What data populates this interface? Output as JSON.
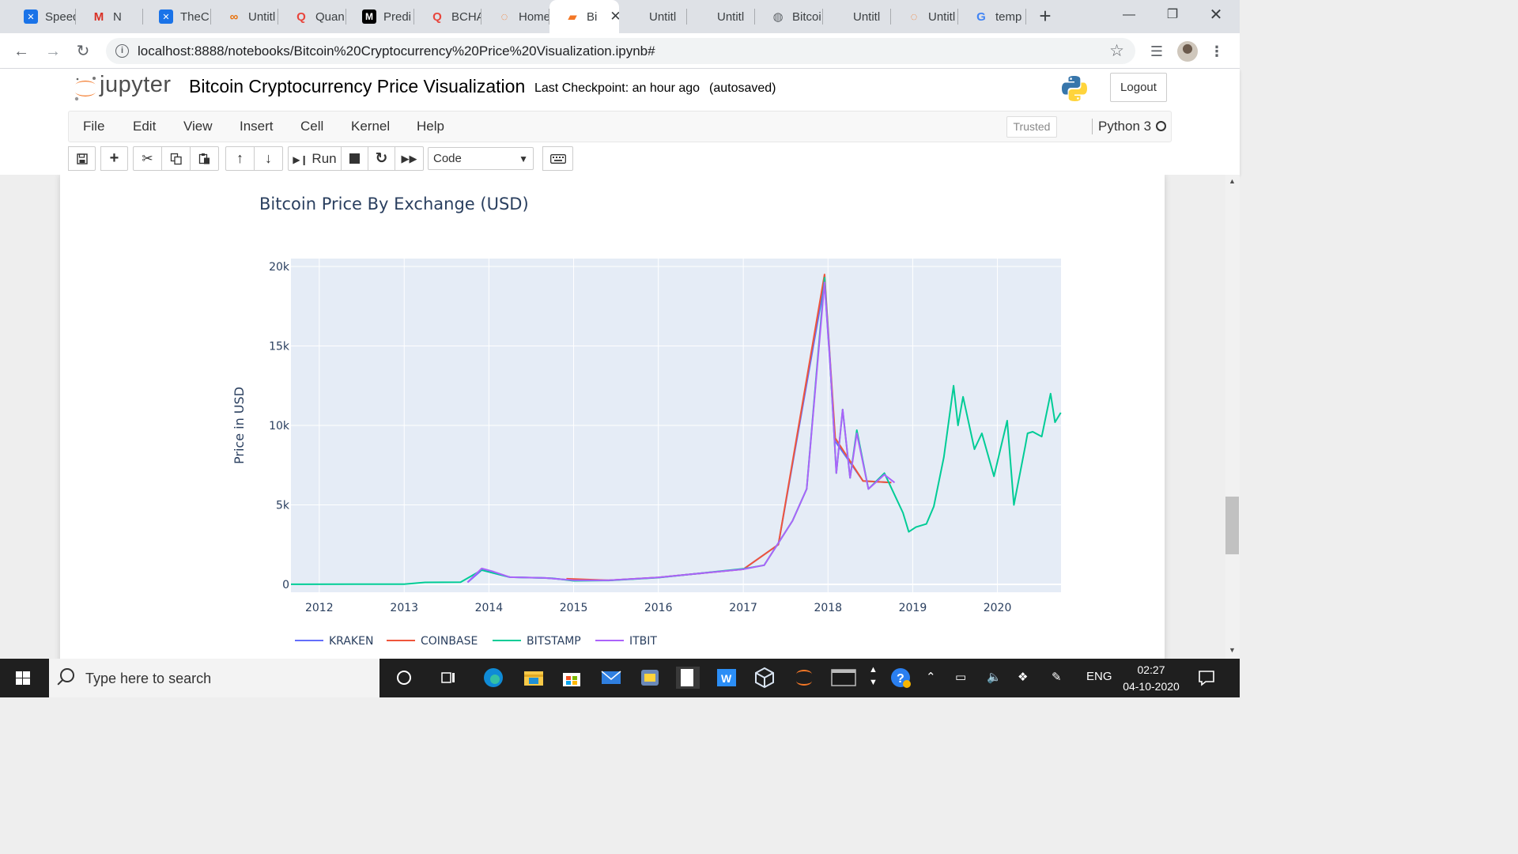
{
  "browser": {
    "tabs": [
      {
        "title": "Speed",
        "favicon": "x-icon",
        "fav_color": "#1a73e8"
      },
      {
        "title": "N",
        "favicon": "gmail-icon",
        "fav_color": "#d93025"
      },
      {
        "title": "TheC",
        "favicon": "x-icon",
        "fav_color": "#1a73e8"
      },
      {
        "title": "Untitl",
        "favicon": "colab-icon",
        "fav_color": "#e8710a"
      },
      {
        "title": "Quan",
        "favicon": "quora-icon",
        "fav_color": "#e8453c"
      },
      {
        "title": "Predi",
        "favicon": "medium-icon",
        "fav_color": "#000000"
      },
      {
        "title": "BCHA",
        "favicon": "quora-icon",
        "fav_color": "#e8453c"
      },
      {
        "title": "Home",
        "favicon": "jupyter-icon",
        "fav_color": "#f37726"
      },
      {
        "title": "Bi",
        "favicon": "notebook-icon",
        "fav_color": "#f37726"
      },
      {
        "title": "Untitl",
        "favicon": "",
        "fav_color": ""
      },
      {
        "title": "Untitl",
        "favicon": "",
        "fav_color": ""
      },
      {
        "title": "Bitcoi",
        "favicon": "globe-icon",
        "fav_color": "#5f6368"
      },
      {
        "title": "Untitl",
        "favicon": "",
        "fav_color": ""
      },
      {
        "title": "Untitl",
        "favicon": "jupyter-icon",
        "fav_color": "#f37726"
      },
      {
        "title": "temp",
        "favicon": "google-icon",
        "fav_color": "#4285f4"
      }
    ],
    "active_tab_index": 8,
    "url": "localhost:8888/notebooks/Bitcoin%20Cryptocurrency%20Price%20Visualization.ipynb#"
  },
  "jupyter": {
    "logo_text": "jupyter",
    "notebook_title": "Bitcoin Cryptocurrency Price Visualization",
    "checkpoint": "Last Checkpoint: an hour ago",
    "autosaved": "(autosaved)",
    "logout_label": "Logout",
    "menu": [
      "File",
      "Edit",
      "View",
      "Insert",
      "Cell",
      "Kernel",
      "Help"
    ],
    "trusted_label": "Trusted",
    "kernel_name": "Python 3",
    "toolbar": {
      "run_label": "Run",
      "cell_type": "Code"
    }
  },
  "chart_data": {
    "type": "line",
    "title": "Bitcoin Price By Exchange (USD)",
    "xlabel": "",
    "ylabel": "Price in USD",
    "x_range": [
      "2011-09-01",
      "2020-10-01"
    ],
    "ylim": [
      -500,
      20500
    ],
    "x_ticks": [
      "2012",
      "2013",
      "2014",
      "2015",
      "2016",
      "2017",
      "2018",
      "2019",
      "2020"
    ],
    "y_ticks": [
      0,
      5000,
      10000,
      15000,
      20000
    ],
    "y_tick_labels": [
      "0",
      "5k",
      "10k",
      "15k",
      "20k"
    ],
    "grid": true,
    "legend_position": "bottom",
    "series": [
      {
        "name": "KRAKEN",
        "color": "#636efa",
        "points": [
          [
            "2013-10-01",
            120
          ],
          [
            "2013-12-01",
            900
          ],
          [
            "2014-04-01",
            450
          ],
          [
            "2014-09-01",
            400
          ],
          [
            "2015-01-01",
            250
          ],
          [
            "2015-06-01",
            250
          ],
          [
            "2016-01-01",
            430
          ],
          [
            "2016-06-01",
            650
          ],
          [
            "2017-01-01",
            950
          ],
          [
            "2017-06-01",
            2500
          ],
          [
            "2017-12-17",
            19000
          ],
          [
            "2018-02-01",
            9000
          ],
          [
            "2018-06-01",
            6500
          ],
          [
            "2018-10-01",
            6400
          ]
        ]
      },
      {
        "name": "COINBASE",
        "color": "#ef553b",
        "points": [
          [
            "2014-12-01",
            350
          ],
          [
            "2015-06-01",
            250
          ],
          [
            "2016-01-01",
            430
          ],
          [
            "2016-06-01",
            650
          ],
          [
            "2017-01-01",
            950
          ],
          [
            "2017-06-01",
            2500
          ],
          [
            "2017-12-17",
            19500
          ],
          [
            "2018-02-01",
            9200
          ],
          [
            "2018-06-01",
            6500
          ],
          [
            "2018-10-01",
            6400
          ]
        ]
      },
      {
        "name": "BITSTAMP",
        "color": "#00cc96",
        "points": [
          [
            "2011-09-01",
            5
          ],
          [
            "2012-06-01",
            6
          ],
          [
            "2013-01-01",
            15
          ],
          [
            "2013-04-01",
            120
          ],
          [
            "2013-09-01",
            130
          ],
          [
            "2013-12-01",
            900
          ],
          [
            "2014-04-01",
            450
          ],
          [
            "2014-10-01",
            380
          ],
          [
            "2015-01-01",
            220
          ],
          [
            "2015-06-01",
            240
          ],
          [
            "2016-01-01",
            420
          ],
          [
            "2016-06-01",
            650
          ],
          [
            "2017-01-01",
            980
          ],
          [
            "2017-04-01",
            1200
          ],
          [
            "2017-06-01",
            2600
          ],
          [
            "2017-08-01",
            4000
          ],
          [
            "2017-10-01",
            6000
          ],
          [
            "2017-12-17",
            19300
          ],
          [
            "2018-01-10",
            14000
          ],
          [
            "2018-02-06",
            7000
          ],
          [
            "2018-03-05",
            11000
          ],
          [
            "2018-04-06",
            6700
          ],
          [
            "2018-05-05",
            9700
          ],
          [
            "2018-06-24",
            6000
          ],
          [
            "2018-09-01",
            7000
          ],
          [
            "2018-11-20",
            4500
          ],
          [
            "2018-12-15",
            3300
          ],
          [
            "2019-01-15",
            3600
          ],
          [
            "2019-03-01",
            3800
          ],
          [
            "2019-04-02",
            4900
          ],
          [
            "2019-05-15",
            8000
          ],
          [
            "2019-06-26",
            12500
          ],
          [
            "2019-07-15",
            10000
          ],
          [
            "2019-08-06",
            11800
          ],
          [
            "2019-09-24",
            8500
          ],
          [
            "2019-10-26",
            9500
          ],
          [
            "2019-12-17",
            6800
          ],
          [
            "2020-02-12",
            10300
          ],
          [
            "2020-03-12",
            5000
          ],
          [
            "2020-04-30",
            8700
          ],
          [
            "2020-05-10",
            9500
          ],
          [
            "2020-06-01",
            9600
          ],
          [
            "2020-07-10",
            9300
          ],
          [
            "2020-08-17",
            12000
          ],
          [
            "2020-09-05",
            10200
          ],
          [
            "2020-09-30",
            10800
          ]
        ]
      },
      {
        "name": "ITBIT",
        "color": "#ab63fa",
        "points": [
          [
            "2013-10-01",
            130
          ],
          [
            "2013-12-01",
            1000
          ],
          [
            "2014-01-20",
            800
          ],
          [
            "2014-04-01",
            450
          ],
          [
            "2014-09-01",
            400
          ],
          [
            "2015-01-01",
            260
          ],
          [
            "2015-06-01",
            250
          ],
          [
            "2016-01-01",
            430
          ],
          [
            "2016-06-01",
            650
          ],
          [
            "2017-01-01",
            950
          ],
          [
            "2017-04-01",
            1200
          ],
          [
            "2017-06-01",
            2600
          ],
          [
            "2017-08-01",
            4000
          ],
          [
            "2017-10-01",
            6000
          ],
          [
            "2017-12-17",
            19000
          ],
          [
            "2018-01-10",
            14000
          ],
          [
            "2018-02-06",
            7000
          ],
          [
            "2018-03-05",
            11000
          ],
          [
            "2018-04-06",
            6700
          ],
          [
            "2018-05-05",
            9500
          ],
          [
            "2018-06-24",
            6000
          ],
          [
            "2018-09-01",
            6900
          ],
          [
            "2018-10-15",
            6400
          ]
        ]
      }
    ]
  },
  "taskbar": {
    "search_placeholder": "Type here to search",
    "language": "ENG",
    "time": "02:27",
    "date": "04-10-2020"
  }
}
